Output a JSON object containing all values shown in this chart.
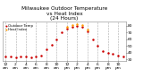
{
  "title": "Milwaukee Outdoor Temperature\nvs Heat Index\n(24 Hours)",
  "title_color": "#000000",
  "background_color": "#ffffff",
  "plot_bg_color": "#ffffff",
  "grid_color": "#aaaaaa",
  "x_hours": [
    0,
    1,
    2,
    3,
    4,
    5,
    6,
    7,
    8,
    9,
    10,
    11,
    12,
    13,
    14,
    15,
    16,
    17,
    18,
    19,
    20,
    21,
    22,
    23
  ],
  "temp_values": [
    35,
    34,
    33,
    34,
    35,
    33,
    34,
    36,
    45,
    52,
    60,
    70,
    76,
    79,
    80,
    79,
    72,
    60,
    50,
    43,
    40,
    38,
    36,
    34
  ],
  "heat_values": [
    null,
    null,
    null,
    null,
    null,
    null,
    null,
    null,
    null,
    null,
    null,
    null,
    78,
    81,
    82,
    81,
    74,
    null,
    null,
    null,
    null,
    null,
    null,
    null
  ],
  "temp_color": "#cc0000",
  "heat_color": "#ff9900",
  "ylim": [
    28,
    86
  ],
  "ytick_values": [
    30,
    40,
    50,
    60,
    70,
    80
  ],
  "ytick_labels": [
    "30",
    "40",
    "50",
    "60",
    "70",
    "80"
  ],
  "xtick_positions": [
    0,
    2,
    4,
    6,
    8,
    10,
    12,
    14,
    16,
    18,
    20,
    22
  ],
  "xtick_labels": [
    "12",
    "2",
    "4",
    "6",
    "8",
    "10",
    "12",
    "2",
    "4",
    "6",
    "8",
    "10"
  ],
  "xtick_labels2": [
    "am",
    "am",
    "am",
    "am",
    "am",
    "am",
    "pm",
    "pm",
    "pm",
    "pm",
    "pm",
    "pm"
  ],
  "grid_positions": [
    0,
    2,
    4,
    6,
    8,
    10,
    12,
    14,
    16,
    18,
    20,
    22
  ],
  "marker_size": 1.8,
  "title_fontsize": 4.2,
  "tick_fontsize": 3.2,
  "legend_fontsize": 2.8
}
